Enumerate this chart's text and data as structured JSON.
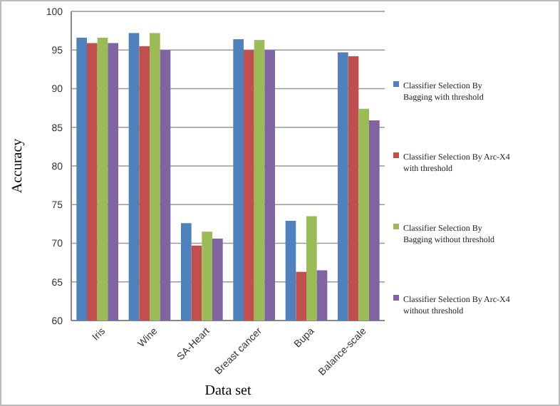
{
  "chart_data": {
    "type": "bar",
    "xlabel": "Data set",
    "ylabel": "Accuracy",
    "categories": [
      "Iris",
      "Wine",
      "SA-Heart",
      "Breast cancer",
      "Bupa",
      "Balance-scale"
    ],
    "series": [
      {
        "name": "Classifier Selection By Bagging with threshold",
        "color": "#4f81bd",
        "values": [
          96.6,
          97.2,
          72.6,
          96.4,
          72.9,
          94.7
        ]
      },
      {
        "name": "Classifier Selection By Arc-X4 with threshold",
        "color": "#c0504d",
        "values": [
          95.9,
          95.5,
          69.7,
          95.0,
          66.3,
          94.2
        ]
      },
      {
        "name": "Classifier Selection By Bagging without threshold",
        "color": "#9bbb59",
        "values": [
          96.6,
          97.2,
          71.5,
          96.3,
          73.5,
          87.4
        ]
      },
      {
        "name": "Classifier Selection By Arc-X4 without threshold",
        "color": "#8064a2",
        "values": [
          95.9,
          95.0,
          70.6,
          95.0,
          66.5,
          85.9
        ]
      }
    ],
    "ylim": [
      60,
      100
    ],
    "yticks": [
      60,
      65,
      70,
      75,
      80,
      85,
      90,
      95,
      100
    ],
    "grid": "y",
    "legend": "right"
  }
}
